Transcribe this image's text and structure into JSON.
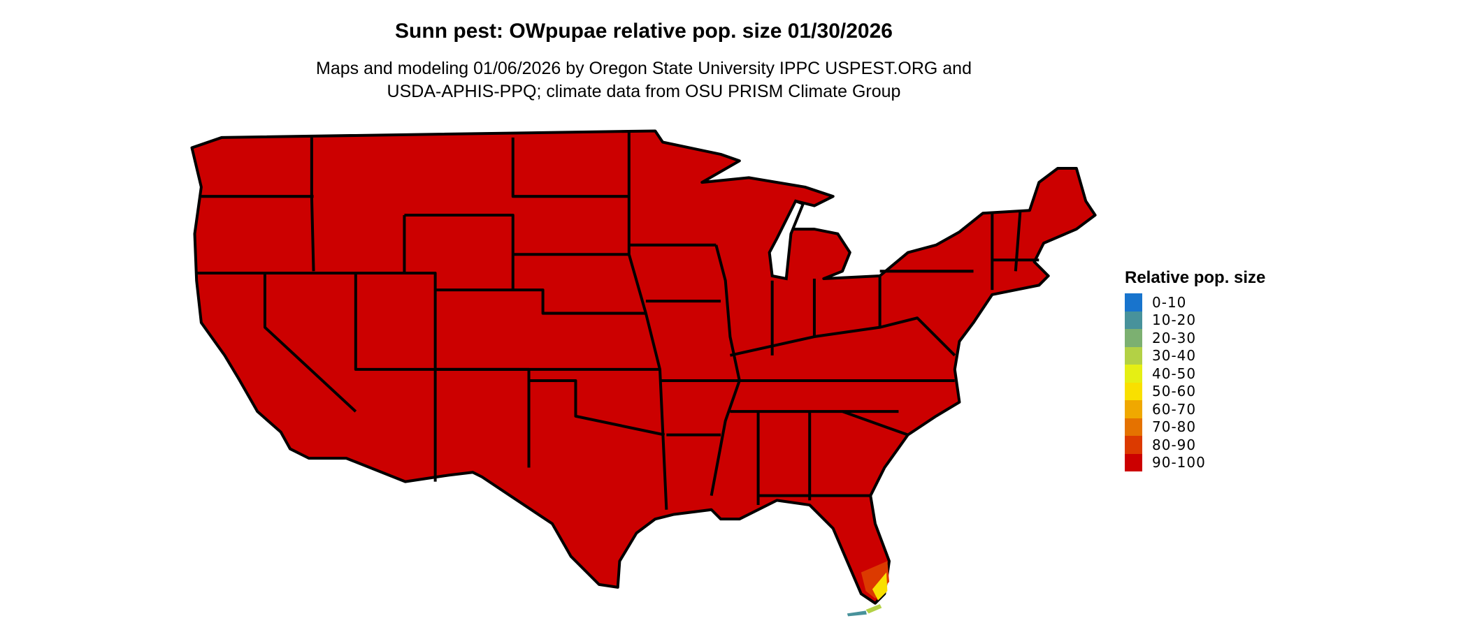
{
  "title": "Sunn pest: OWpupae relative pop. size 01/30/2026",
  "subtitle_lines": [
    "Maps and modeling 01/06/2026 by Oregon State University IPPC USPEST.ORG and",
    "USDA-APHIS-PPQ; climate data from OSU PRISM Climate Group"
  ],
  "map": {
    "region": "Contiguous United States",
    "dominant_class": "90-100",
    "notes_visible": "South Florida shows lower classes (80-90, 50-60, 30-40, 10-20 in Keys)"
  },
  "legend": {
    "title": "Relative pop. size",
    "items": [
      {
        "label": "0-10",
        "color": "#1874CD"
      },
      {
        "label": "10-20",
        "color": "#48929B"
      },
      {
        "label": "20-30",
        "color": "#7CB071"
      },
      {
        "label": "30-40",
        "color": "#B3D145"
      },
      {
        "label": "40-50",
        "color": "#E5EF14"
      },
      {
        "label": "50-60",
        "color": "#F9E000"
      },
      {
        "label": "60-70",
        "color": "#F0A800"
      },
      {
        "label": "70-80",
        "color": "#E57200"
      },
      {
        "label": "80-90",
        "color": "#DC3A00"
      },
      {
        "label": "90-100",
        "color": "#CC0000"
      }
    ]
  }
}
